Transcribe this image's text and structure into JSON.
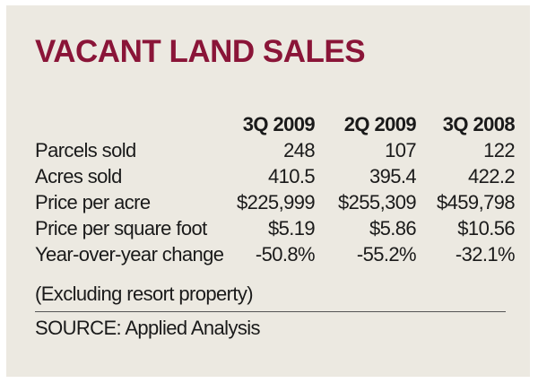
{
  "chart_data": {
    "type": "table",
    "title": "VACANT LAND SALES",
    "columns": [
      "3Q 2009",
      "2Q 2009",
      "3Q 2008"
    ],
    "rows": [
      {
        "label": "Parcels sold",
        "values": [
          "248",
          "107",
          "122"
        ]
      },
      {
        "label": "Acres sold",
        "values": [
          "410.5",
          "395.4",
          "422.2"
        ]
      },
      {
        "label": "Price per acre",
        "values": [
          "$225,999",
          "$255,309",
          "$459,798"
        ]
      },
      {
        "label": "Price per square foot",
        "values": [
          "$5.19",
          "$5.86",
          "$10.56"
        ]
      },
      {
        "label": "Year-over-year change",
        "values": [
          "-50.8%",
          "-55.2%",
          "-32.1%"
        ]
      }
    ],
    "note": "(Excluding resort property)",
    "source": "SOURCE: Applied Analysis"
  },
  "colors": {
    "title": "#8a1538",
    "background": "#ece9e1",
    "text": "#1a1a1a",
    "rule": "#555555"
  }
}
